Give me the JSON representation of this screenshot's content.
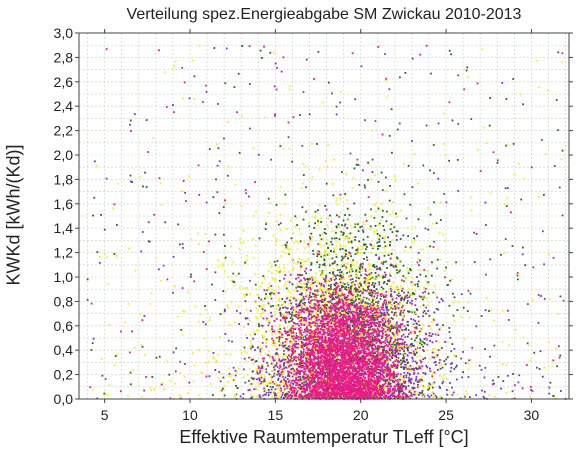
{
  "chart_data": {
    "type": "scatter",
    "title": "Verteilung spez.Energieabgabe SM Zwickau 2010-2013",
    "xlabel": "Effektive Raumtemperatur TLeff [°C]",
    "ylabel": "KWKd [kWh/(Kd)]",
    "xlim": [
      3.5,
      32.2
    ],
    "ylim": [
      0.0,
      3.0
    ],
    "x_ticks": [
      5,
      10,
      15,
      20,
      25,
      30
    ],
    "x_tick_labels": [
      "5",
      "10",
      "15",
      "20",
      "25",
      "30"
    ],
    "y_ticks": [
      0.0,
      0.2,
      0.4,
      0.6,
      0.8,
      1.0,
      1.2,
      1.4,
      1.6,
      1.8,
      2.0,
      2.2,
      2.4,
      2.6,
      2.8,
      3.0
    ],
    "y_tick_labels": [
      "0,0",
      "0,2",
      "0,4",
      "0,6",
      "0,8",
      "1,0",
      "1,2",
      "1,4",
      "1,6",
      "1,8",
      "2,0",
      "2,2",
      "2,4",
      "2,6",
      "2,8",
      "3,0"
    ],
    "grid": true,
    "legend": "none",
    "series": [
      {
        "color": "#7a30d8",
        "center": [
          19.5,
          0.3
        ],
        "spread": [
          2.6,
          0.32
        ],
        "count": 1400
      },
      {
        "color": "#1f6b1f",
        "center": [
          19.5,
          0.6
        ],
        "spread": [
          2.5,
          0.45
        ],
        "count": 1400
      },
      {
        "color": "#f2f21a",
        "center": [
          18.5,
          0.55
        ],
        "spread": [
          3.0,
          0.5
        ],
        "count": 1500
      },
      {
        "color": "#ee1a86",
        "center": [
          19.0,
          0.32
        ],
        "spread": [
          1.7,
          0.3
        ],
        "count": 3500
      }
    ],
    "scattered_outliers": [
      {
        "color": "#7a30d8",
        "x_range": [
          4,
          32
        ],
        "y_range": [
          0,
          2.9
        ],
        "count": 220
      },
      {
        "color": "#1f6b1f",
        "x_range": [
          4,
          32
        ],
        "y_range": [
          0,
          2.9
        ],
        "count": 200
      },
      {
        "color": "#f2f21a",
        "x_range": [
          4,
          32
        ],
        "y_range": [
          0,
          2.9
        ],
        "count": 260
      },
      {
        "color": "#ee1a86",
        "x_range": [
          4,
          32
        ],
        "y_range": [
          0,
          2.9
        ],
        "count": 120
      }
    ]
  }
}
